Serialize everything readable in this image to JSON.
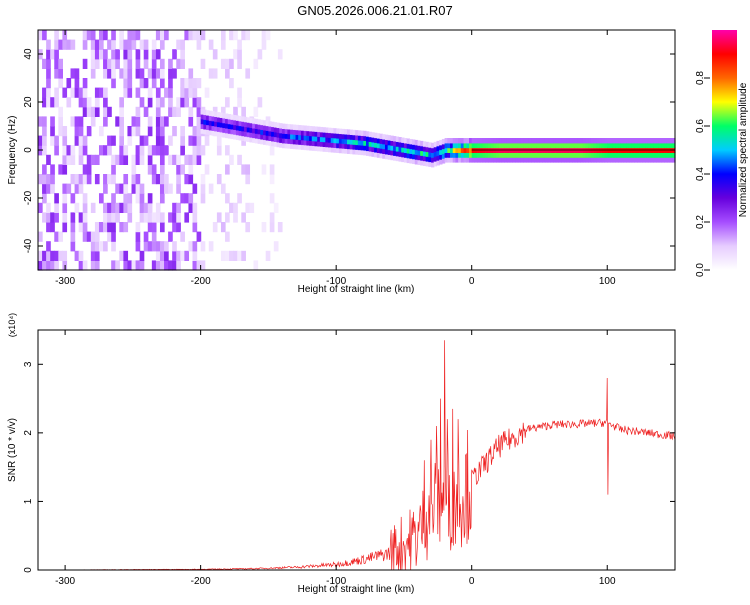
{
  "title": "GN05.2026.006.21.01.R07",
  "chart_data": [
    {
      "type": "heatmap",
      "xlabel": "Height of straight line (km)",
      "ylabel": "Frequency (Hz)",
      "xlim": [
        -320,
        150
      ],
      "ylim": [
        -50,
        50
      ],
      "x_ticks": [
        -300,
        -200,
        -100,
        0,
        100
      ],
      "y_ticks": [
        -40,
        -20,
        0,
        20,
        40
      ],
      "colorbar": {
        "label": "Normalized spectral amplitude",
        "range": [
          0,
          1
        ],
        "ticks": [
          "0.0",
          "0.2",
          "0.4",
          "0.6",
          "0.8"
        ],
        "colormap": [
          "#ffffff",
          "#e6ccff",
          "#a64dff",
          "#6600dd",
          "#0000ff",
          "#00ccff",
          "#00ff66",
          "#ffff00",
          "#ff6600",
          "#ff0000",
          "#ff00aa"
        ]
      },
      "signal_track": {
        "x": [
          -200,
          -180,
          -160,
          -140,
          -120,
          -100,
          -80,
          -60,
          -40,
          -30,
          -20,
          0,
          20,
          50,
          80,
          100,
          150
        ],
        "freq": [
          12,
          10,
          8,
          6,
          5,
          4,
          3,
          1,
          -1,
          -2,
          0,
          0,
          0,
          0,
          0,
          0,
          0
        ],
        "amplitude": [
          0.35,
          0.35,
          0.35,
          0.4,
          0.4,
          0.45,
          0.5,
          0.5,
          0.55,
          0.5,
          0.6,
          0.9,
          0.95,
          0.95,
          0.95,
          0.9,
          0.9
        ]
      },
      "grid": false
    },
    {
      "type": "line",
      "xlabel": "Height of straight line (km)",
      "ylabel": "SNR (10 * v/v)",
      "y_multiplier": "(x10⁴)",
      "xlim": [
        -320,
        150
      ],
      "ylim": [
        0,
        3.5
      ],
      "x_ticks": [
        -300,
        -200,
        -100,
        0,
        100
      ],
      "y_ticks": [
        0,
        1,
        2,
        3
      ],
      "color": "#ee2222",
      "trend": {
        "x": [
          -320,
          -200,
          -160,
          -130,
          -100,
          -80,
          -60,
          -40,
          -30,
          -20,
          -10,
          0,
          10,
          20,
          40,
          60,
          80,
          100,
          110,
          150
        ],
        "y": [
          0.0,
          0.01,
          0.02,
          0.04,
          0.08,
          0.15,
          0.25,
          0.5,
          0.9,
          1.0,
          1.1,
          1.3,
          1.55,
          1.8,
          2.05,
          2.12,
          2.13,
          2.15,
          2.05,
          1.95
        ]
      },
      "spikes": [
        {
          "x": -35,
          "y": 1.6
        },
        {
          "x": -30,
          "y": 1.9
        },
        {
          "x": -26,
          "y": 2.1
        },
        {
          "x": -23,
          "y": 2.5
        },
        {
          "x": -20,
          "y": 3.35
        },
        {
          "x": -18,
          "y": 2.2
        },
        {
          "x": -14,
          "y": 2.35
        },
        {
          "x": -10,
          "y": 2.2
        },
        {
          "x": 100,
          "y": 2.8
        },
        {
          "x": 100.5,
          "y": 1.1
        }
      ],
      "grid": false
    }
  ]
}
